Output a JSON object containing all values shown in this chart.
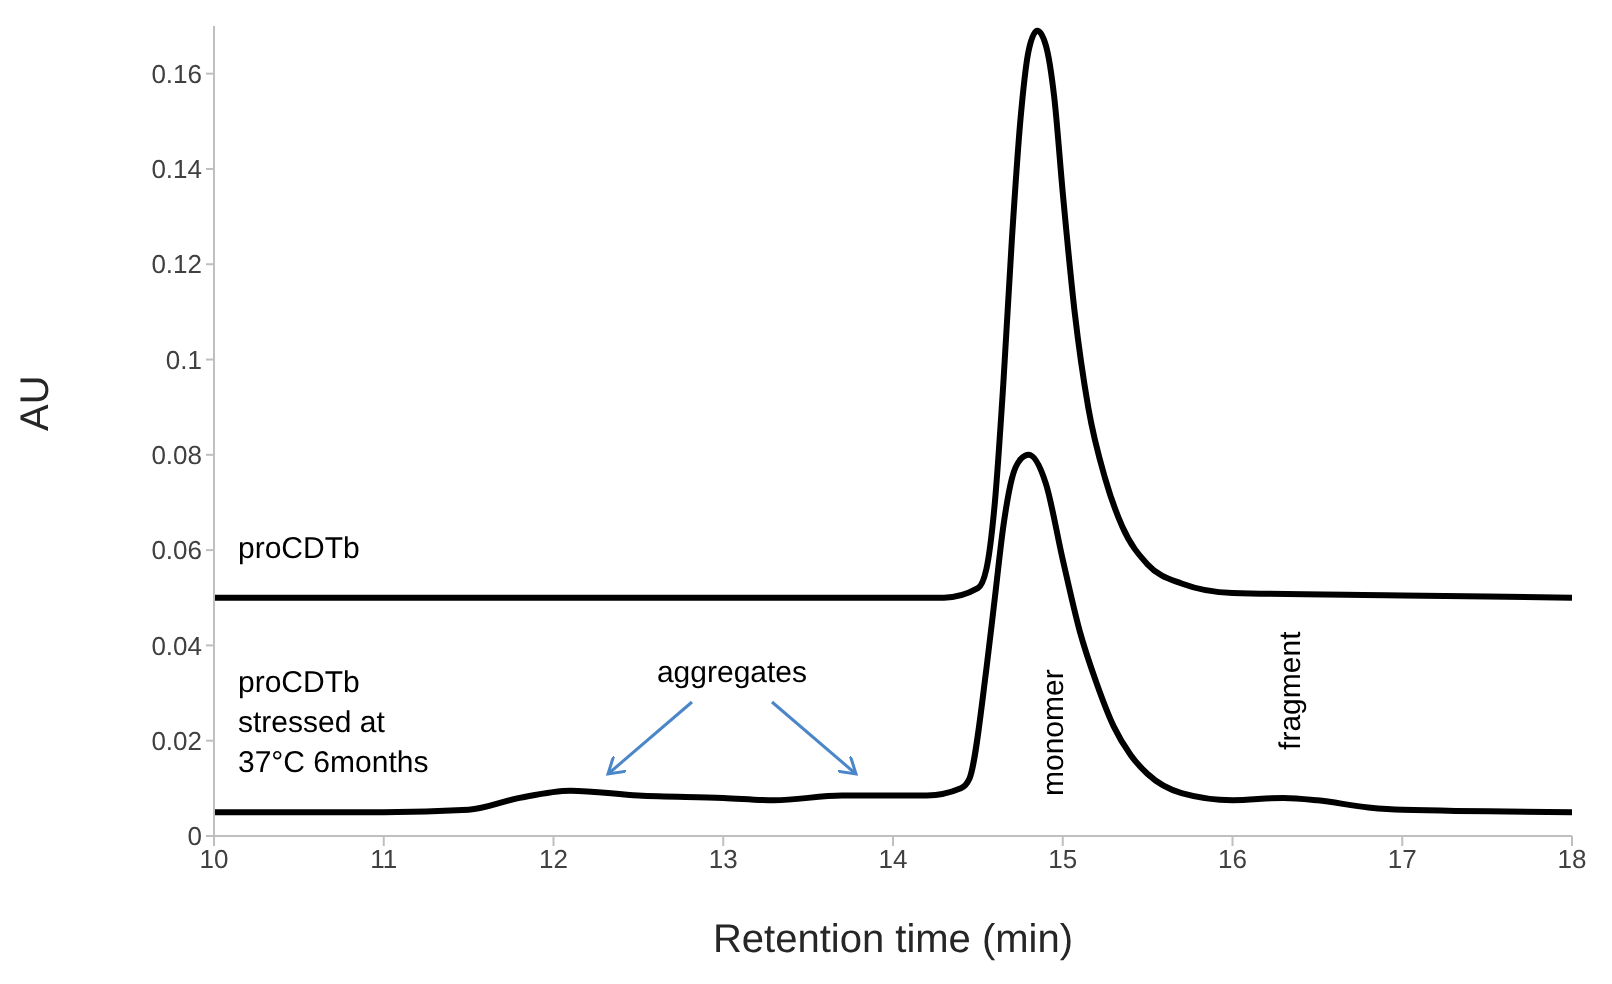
{
  "chart_data": {
    "type": "line",
    "xlabel": "Retention time (min)",
    "ylabel": "AU",
    "xlim": [
      10,
      18
    ],
    "xticks": [
      10,
      11,
      12,
      13,
      14,
      15,
      16,
      17,
      18
    ],
    "ylim": [
      0,
      0.17
    ],
    "yticks": [
      0,
      0.02,
      0.04,
      0.06,
      0.08,
      0.1,
      0.12,
      0.14,
      0.16
    ],
    "marker": "none",
    "line_style": "solid",
    "series": [
      {
        "name": "proCDTb",
        "color": "#000000",
        "x": [
          10,
          12,
          14,
          14.3,
          14.5,
          14.55,
          14.6,
          14.65,
          14.7,
          14.75,
          14.8,
          14.85,
          14.9,
          14.95,
          15.0,
          15.07,
          15.15,
          15.25,
          15.35,
          15.5,
          15.7,
          16,
          17,
          18
        ],
        "values": [
          0.05,
          0.05,
          0.05,
          0.05,
          0.052,
          0.056,
          0.07,
          0.095,
          0.125,
          0.15,
          0.165,
          0.169,
          0.166,
          0.155,
          0.135,
          0.11,
          0.09,
          0.075,
          0.065,
          0.057,
          0.053,
          0.051,
          0.0505,
          0.05
        ]
      },
      {
        "name": "proCDTb stressed at 37°C 6months",
        "color": "#000000",
        "x": [
          10,
          11,
          11.5,
          11.8,
          12.1,
          12.5,
          13,
          13.3,
          13.7,
          14.2,
          14.4,
          14.45,
          14.55,
          14.6,
          14.65,
          14.7,
          14.75,
          14.8,
          14.9,
          15.0,
          15.1,
          15.2,
          15.3,
          15.4,
          15.5,
          15.7,
          16,
          16.3,
          16.5,
          16.8,
          17,
          18
        ],
        "values": [
          0.005,
          0.005,
          0.0055,
          0.008,
          0.0095,
          0.0085,
          0.008,
          0.0075,
          0.0085,
          0.0085,
          0.01,
          0.012,
          0.035,
          0.05,
          0.065,
          0.075,
          0.079,
          0.08,
          0.074,
          0.058,
          0.043,
          0.032,
          0.023,
          0.017,
          0.013,
          0.009,
          0.0075,
          0.008,
          0.0075,
          0.006,
          0.0055,
          0.005
        ]
      }
    ],
    "annotations": [
      "aggregates",
      "monomer",
      {
        "text": "fragment",
        "x": 16.3,
        "y": 0.008
      }
    ]
  }
}
